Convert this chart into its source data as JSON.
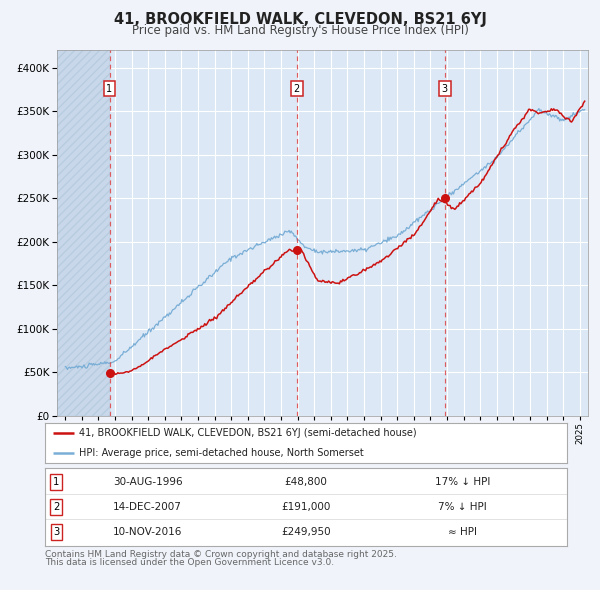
{
  "title": "41, BROOKFIELD WALK, CLEVEDON, BS21 6YJ",
  "subtitle": "Price paid vs. HM Land Registry's House Price Index (HPI)",
  "title_fontsize": 10.5,
  "subtitle_fontsize": 8.5,
  "background_color": "#f0f4fa",
  "plot_bg_color": "#dce8f5",
  "hatch_color": "#c8d8ea",
  "grid_color": "#ffffff",
  "sale_dates": [
    1996.664,
    2007.954,
    2016.861
  ],
  "sale_prices": [
    48800,
    191000,
    249950
  ],
  "sale_labels": [
    "1",
    "2",
    "3"
  ],
  "vline_color": "#dd4444",
  "red_line_color": "#cc1111",
  "blue_line_color": "#7aaed6",
  "marker_color": "#cc1111",
  "ylim": [
    0,
    420000
  ],
  "yticks": [
    0,
    50000,
    100000,
    150000,
    200000,
    250000,
    300000,
    350000,
    400000
  ],
  "xmin": 1993.5,
  "xmax": 2025.5,
  "legend_label_red": "41, BROOKFIELD WALK, CLEVEDON, BS21 6YJ (semi-detached house)",
  "legend_label_blue": "HPI: Average price, semi-detached house, North Somerset",
  "table_data": [
    {
      "num": "1",
      "date": "30-AUG-1996",
      "price": "£48,800",
      "hpi": "17% ↓ HPI"
    },
    {
      "num": "2",
      "date": "14-DEC-2007",
      "price": "£191,000",
      "hpi": "7% ↓ HPI"
    },
    {
      "num": "3",
      "date": "10-NOV-2016",
      "price": "£249,950",
      "hpi": "≈ HPI"
    }
  ],
  "footnote_line1": "Contains HM Land Registry data © Crown copyright and database right 2025.",
  "footnote_line2": "This data is licensed under the Open Government Licence v3.0.",
  "footnote_fontsize": 6.5
}
